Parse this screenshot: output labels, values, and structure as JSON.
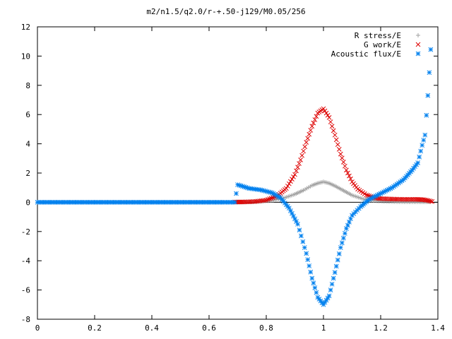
{
  "chart_data": {
    "type": "scatter",
    "title": "m2/n1.5/q2.0/r-+.50-j129/M0.05/256",
    "xlabel": "",
    "ylabel": "",
    "xlim": [
      0,
      1.4
    ],
    "ylim": [
      -8,
      12
    ],
    "x_ticks": [
      "0",
      "0.2",
      "0.4",
      "0.6",
      "0.8",
      "1",
      "1.2",
      "1.4"
    ],
    "y_ticks": [
      "12",
      "10",
      "8",
      "6",
      "4",
      "2",
      "0",
      "-2",
      "-4",
      "-6",
      "-8"
    ],
    "grid": false,
    "legend_position": "top-right",
    "series": [
      {
        "name": "R stress/E",
        "marker": "+",
        "color": "#a0a0a0",
        "x": [
          0.7,
          0.74,
          0.78,
          0.82,
          0.86,
          0.9,
          0.93,
          0.96,
          0.98,
          1.0,
          1.02,
          1.04,
          1.07,
          1.1,
          1.14,
          1.18,
          1.22,
          1.26,
          1.3,
          1.34,
          1.37
        ],
        "y": [
          0.0,
          0.02,
          0.05,
          0.12,
          0.28,
          0.55,
          0.82,
          1.15,
          1.3,
          1.4,
          1.3,
          1.12,
          0.8,
          0.48,
          0.22,
          0.1,
          0.05,
          0.03,
          0.02,
          0.02,
          0.02
        ]
      },
      {
        "name": "G work/E",
        "marker": "x",
        "color": "#dd0000",
        "x": [
          0.69,
          0.72,
          0.76,
          0.8,
          0.84,
          0.87,
          0.9,
          0.92,
          0.94,
          0.96,
          0.98,
          1.0,
          1.02,
          1.04,
          1.06,
          1.08,
          1.1,
          1.12,
          1.15,
          1.18,
          1.2,
          1.24,
          1.28,
          1.32,
          1.35,
          1.37,
          1.38
        ],
        "y": [
          0.02,
          0.02,
          0.05,
          0.15,
          0.45,
          0.95,
          1.9,
          2.9,
          4.1,
          5.2,
          6.1,
          6.4,
          5.8,
          4.6,
          3.3,
          2.2,
          1.4,
          0.9,
          0.5,
          0.3,
          0.25,
          0.22,
          0.2,
          0.2,
          0.18,
          0.1,
          0.05
        ]
      },
      {
        "name": "Acoustic flux/E",
        "marker": "*",
        "color": "#0080ee",
        "x": [
          0.0,
          0.05,
          0.1,
          0.15,
          0.2,
          0.25,
          0.3,
          0.35,
          0.4,
          0.45,
          0.5,
          0.55,
          0.6,
          0.65,
          0.69,
          0.7,
          0.74,
          0.78,
          0.82,
          0.85,
          0.88,
          0.91,
          0.94,
          0.96,
          0.98,
          1.0,
          1.02,
          1.04,
          1.06,
          1.08,
          1.1,
          1.13,
          1.16,
          1.2,
          1.24,
          1.28,
          1.31,
          1.33,
          1.345,
          1.355,
          1.365,
          1.375
        ],
        "y": [
          0,
          0,
          0,
          0,
          0,
          0,
          0,
          0,
          0,
          0,
          0,
          0,
          0,
          0,
          0,
          1.2,
          0.95,
          0.85,
          0.65,
          0.3,
          -0.4,
          -1.5,
          -3.5,
          -5.2,
          -6.5,
          -7.0,
          -6.4,
          -4.8,
          -3.1,
          -1.8,
          -0.9,
          -0.3,
          0.2,
          0.6,
          1.0,
          1.55,
          2.2,
          2.7,
          3.9,
          4.6,
          7.3,
          10.45
        ]
      }
    ]
  }
}
